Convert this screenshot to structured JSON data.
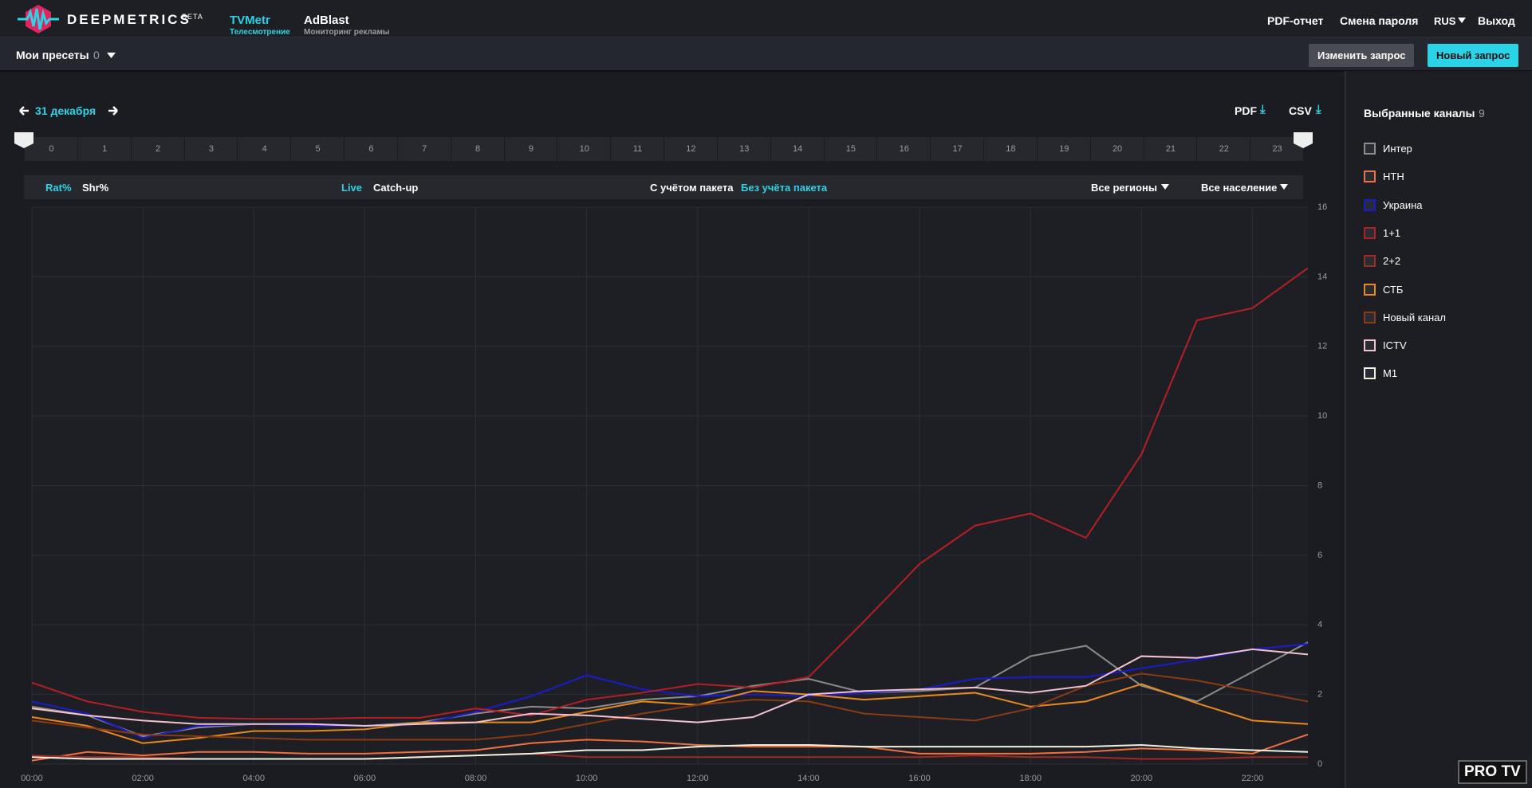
{
  "header": {
    "logo": "DEEPMETRICS",
    "logo_badge": "BETA",
    "nav": [
      {
        "title": "TVMetr",
        "subtitle": "Телесмотрение"
      },
      {
        "title": "AdBlast",
        "subtitle": "Мониторинг рекламы"
      }
    ],
    "links": [
      "PDF-отчет",
      "Смена пароля",
      "RUS",
      "Выход"
    ]
  },
  "presets": {
    "label": "Мои пресеты",
    "count": 0,
    "buttons": [
      "Изменить запрос",
      "Новый запрос"
    ]
  },
  "date": {
    "label": "31 декабря",
    "exports": [
      "PDF",
      "CSV"
    ]
  },
  "timeline": {
    "hours": [
      0,
      1,
      2,
      3,
      4,
      5,
      6,
      7,
      8,
      9,
      10,
      11,
      12,
      13,
      14,
      15,
      16,
      17,
      18,
      19,
      20,
      21,
      22,
      23
    ]
  },
  "filters": {
    "metrics": [
      "Rat%",
      "Shr%"
    ],
    "modes": [
      "Live",
      "Catch-up"
    ],
    "package": [
      "С учётом пакета",
      "Без учёта пакета"
    ],
    "regions": "Все регионы",
    "population": "Все население"
  },
  "channels_panel": {
    "title": "Выбранные каналы",
    "count": 9
  },
  "watermark": "PRO TV",
  "chart_data": {
    "type": "line",
    "grid": true,
    "x": [
      0,
      1,
      2,
      3,
      4,
      5,
      6,
      7,
      8,
      9,
      10,
      11,
      12,
      13,
      14,
      15,
      16,
      17,
      18,
      19,
      20,
      21,
      22,
      23
    ],
    "xlim": [
      0,
      23
    ],
    "xticks": [
      {
        "value": 0,
        "label": "00:00"
      },
      {
        "value": 2,
        "label": "02:00"
      },
      {
        "value": 4,
        "label": "04:00"
      },
      {
        "value": 6,
        "label": "06:00"
      },
      {
        "value": 8,
        "label": "08:00"
      },
      {
        "value": 10,
        "label": "10:00"
      },
      {
        "value": 12,
        "label": "12:00"
      },
      {
        "value": 14,
        "label": "14:00"
      },
      {
        "value": 16,
        "label": "16:00"
      },
      {
        "value": 18,
        "label": "18:00"
      },
      {
        "value": 20,
        "label": "20:00"
      },
      {
        "value": 22,
        "label": "22:00"
      }
    ],
    "ylim": [
      0,
      16
    ],
    "yticks": [
      0,
      2,
      4,
      6,
      8,
      10,
      12,
      14,
      16
    ],
    "series": [
      {
        "name": "Интер",
        "color": "#8c8c8c",
        "values": [
          1.65,
          1.4,
          0.8,
          1.05,
          1.15,
          1.15,
          1.1,
          1.2,
          1.45,
          1.65,
          1.6,
          1.85,
          1.95,
          2.25,
          2.45,
          2.05,
          2.1,
          2.2,
          3.1,
          3.4,
          2.25,
          1.8,
          2.65,
          3.5
        ]
      },
      {
        "name": "НТН",
        "color": "#f07040",
        "values": [
          0.1,
          0.35,
          0.25,
          0.35,
          0.35,
          0.3,
          0.3,
          0.35,
          0.4,
          0.6,
          0.7,
          0.65,
          0.55,
          0.5,
          0.5,
          0.5,
          0.3,
          0.3,
          0.3,
          0.35,
          0.45,
          0.4,
          0.3,
          0.85
        ]
      },
      {
        "name": "Украина",
        "color": "#1a1ad0",
        "values": [
          1.8,
          1.45,
          0.75,
          1.1,
          1.15,
          1.1,
          1.1,
          1.15,
          1.5,
          1.95,
          2.55,
          2.15,
          1.95,
          2.0,
          1.95,
          2.05,
          2.15,
          2.45,
          2.5,
          2.5,
          2.75,
          3.0,
          3.3,
          3.45
        ]
      },
      {
        "name": "1+1",
        "color": "#b51f24",
        "values": [
          2.34,
          1.8,
          1.5,
          1.33,
          1.3,
          1.3,
          1.33,
          1.33,
          1.6,
          1.4,
          1.85,
          2.05,
          2.3,
          2.2,
          2.5,
          4.1,
          5.75,
          6.85,
          7.2,
          6.5,
          8.9,
          12.75,
          13.1,
          14.25
        ]
      },
      {
        "name": "2+2",
        "color": "#a02a22",
        "values": [
          0.25,
          0.2,
          0.2,
          0.15,
          0.15,
          0.15,
          0.15,
          0.2,
          0.25,
          0.3,
          0.2,
          0.2,
          0.2,
          0.2,
          0.2,
          0.2,
          0.2,
          0.25,
          0.2,
          0.2,
          0.15,
          0.15,
          0.2,
          0.2
        ]
      },
      {
        "name": "СТБ",
        "color": "#e8891e",
        "values": [
          1.35,
          1.1,
          0.6,
          0.75,
          0.95,
          0.95,
          1.0,
          1.2,
          1.2,
          1.2,
          1.5,
          1.8,
          1.7,
          2.1,
          2.0,
          1.85,
          1.95,
          2.05,
          1.65,
          1.8,
          2.3,
          1.75,
          1.25,
          1.15
        ]
      },
      {
        "name": "Новый канал",
        "color": "#8a3a14",
        "values": [
          1.25,
          1.05,
          0.85,
          0.8,
          0.75,
          0.7,
          0.7,
          0.7,
          0.7,
          0.85,
          1.15,
          1.45,
          1.7,
          1.85,
          1.8,
          1.45,
          1.35,
          1.25,
          1.6,
          2.25,
          2.6,
          2.4,
          2.1,
          1.8
        ]
      },
      {
        "name": "ICTV",
        "color": "#f3c1d0",
        "values": [
          1.6,
          1.4,
          1.25,
          1.15,
          1.15,
          1.15,
          1.1,
          1.15,
          1.2,
          1.45,
          1.4,
          1.3,
          1.2,
          1.35,
          2.0,
          2.1,
          2.15,
          2.2,
          2.05,
          2.25,
          3.1,
          3.05,
          3.3,
          3.15
        ]
      },
      {
        "name": "M1",
        "color": "#f0f0e0",
        "values": [
          0.2,
          0.15,
          0.15,
          0.15,
          0.15,
          0.15,
          0.15,
          0.2,
          0.25,
          0.3,
          0.4,
          0.4,
          0.5,
          0.55,
          0.55,
          0.5,
          0.5,
          0.5,
          0.5,
          0.5,
          0.55,
          0.45,
          0.4,
          0.35
        ]
      }
    ]
  }
}
